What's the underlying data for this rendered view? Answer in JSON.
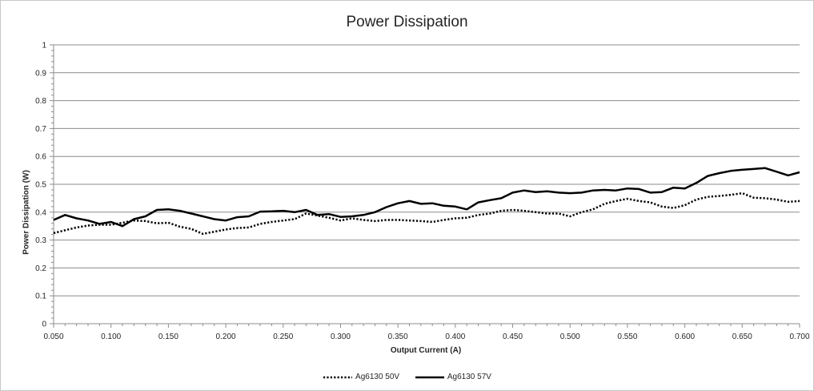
{
  "chart_data": {
    "type": "line",
    "title": "Power Dissipation",
    "xlabel": "Output Current (A)",
    "ylabel": "Power Dissipation (W)",
    "xlim": [
      0.05,
      0.7
    ],
    "ylim": [
      0,
      1
    ],
    "x_ticks": [
      "0.050",
      "0.100",
      "0.150",
      "0.200",
      "0.250",
      "0.300",
      "0.350",
      "0.400",
      "0.450",
      "0.500",
      "0.550",
      "0.600",
      "0.650",
      "0.700"
    ],
    "y_ticks": [
      "0",
      "0.1",
      "0.2",
      "0.3",
      "0.4",
      "0.5",
      "0.6",
      "0.7",
      "0.8",
      "0.9",
      "1"
    ],
    "grid": "horizontal",
    "legend_position": "bottom",
    "x": [
      0.05,
      0.06,
      0.07,
      0.08,
      0.09,
      0.1,
      0.11,
      0.12,
      0.13,
      0.14,
      0.15,
      0.16,
      0.17,
      0.18,
      0.19,
      0.2,
      0.21,
      0.22,
      0.23,
      0.24,
      0.25,
      0.26,
      0.27,
      0.28,
      0.29,
      0.3,
      0.31,
      0.32,
      0.33,
      0.34,
      0.35,
      0.36,
      0.37,
      0.38,
      0.39,
      0.4,
      0.41,
      0.42,
      0.43,
      0.44,
      0.45,
      0.46,
      0.47,
      0.48,
      0.49,
      0.5,
      0.51,
      0.52,
      0.53,
      0.54,
      0.55,
      0.56,
      0.57,
      0.58,
      0.59,
      0.6,
      0.61,
      0.62,
      0.63,
      0.64,
      0.65,
      0.66,
      0.67,
      0.68,
      0.69,
      0.7
    ],
    "series": [
      {
        "name": "Ag6130 50V",
        "style": "dotted",
        "color": "#000000",
        "values": [
          0.325,
          0.335,
          0.345,
          0.352,
          0.355,
          0.355,
          0.362,
          0.37,
          0.368,
          0.36,
          0.362,
          0.348,
          0.34,
          0.322,
          0.33,
          0.338,
          0.343,
          0.345,
          0.358,
          0.365,
          0.37,
          0.375,
          0.395,
          0.388,
          0.38,
          0.37,
          0.378,
          0.372,
          0.368,
          0.372,
          0.372,
          0.37,
          0.368,
          0.365,
          0.372,
          0.378,
          0.38,
          0.39,
          0.395,
          0.405,
          0.408,
          0.405,
          0.4,
          0.395,
          0.395,
          0.385,
          0.4,
          0.41,
          0.43,
          0.44,
          0.448,
          0.44,
          0.435,
          0.42,
          0.415,
          0.425,
          0.445,
          0.455,
          0.458,
          0.462,
          0.468,
          0.452,
          0.45,
          0.445,
          0.437,
          0.44
        ]
      },
      {
        "name": "Ag6130 57V",
        "style": "solid",
        "color": "#000000",
        "values": [
          0.372,
          0.39,
          0.378,
          0.37,
          0.358,
          0.365,
          0.35,
          0.375,
          0.385,
          0.408,
          0.41,
          0.405,
          0.395,
          0.385,
          0.375,
          0.37,
          0.382,
          0.385,
          0.402,
          0.403,
          0.405,
          0.4,
          0.408,
          0.39,
          0.393,
          0.383,
          0.385,
          0.39,
          0.4,
          0.418,
          0.432,
          0.44,
          0.43,
          0.432,
          0.423,
          0.42,
          0.41,
          0.435,
          0.443,
          0.45,
          0.47,
          0.478,
          0.472,
          0.475,
          0.47,
          0.468,
          0.47,
          0.478,
          0.48,
          0.478,
          0.485,
          0.483,
          0.47,
          0.472,
          0.488,
          0.485,
          0.505,
          0.53,
          0.54,
          0.548,
          0.552,
          0.555,
          0.558,
          0.545,
          0.532,
          0.543
        ]
      }
    ]
  }
}
